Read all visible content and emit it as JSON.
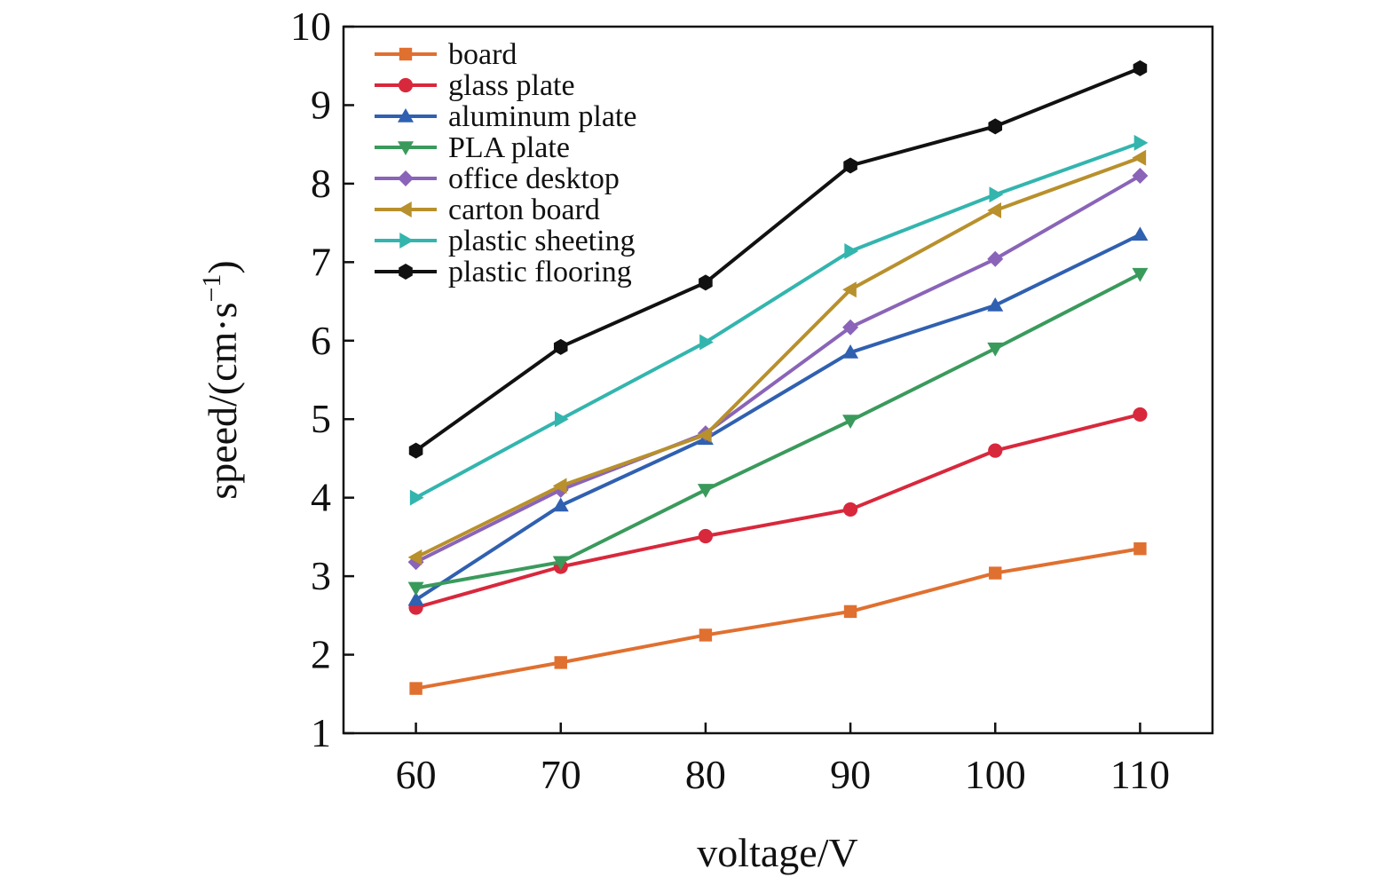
{
  "chart_data": {
    "type": "line",
    "title": "",
    "xlabel": "voltage/V",
    "ylabel": "speed/(cm·s",
    "ylabel_sup": "−1",
    "ylabel_end": ")",
    "x": [
      60,
      70,
      80,
      90,
      100,
      110
    ],
    "x_tick_labels": [
      "60",
      "70",
      "80",
      "90",
      "100",
      "110"
    ],
    "xlim": [
      55,
      115
    ],
    "ylim": [
      1,
      10
    ],
    "y_ticks": [
      1,
      2,
      3,
      4,
      5,
      6,
      7,
      8,
      9,
      10
    ],
    "y_tick_labels": [
      "1",
      "2",
      "3",
      "4",
      "5",
      "6",
      "7",
      "8",
      "9",
      "10"
    ],
    "grid": false,
    "legend_position": "top-left",
    "series": [
      {
        "name": "board",
        "color": "#E07030",
        "marker": "square",
        "values": [
          1.57,
          1.9,
          2.25,
          2.55,
          3.04,
          3.35
        ]
      },
      {
        "name": "glass plate",
        "color": "#D8283C",
        "marker": "circle",
        "values": [
          2.6,
          3.12,
          3.51,
          3.85,
          4.6,
          5.06
        ]
      },
      {
        "name": "aluminum plate",
        "color": "#3060B0",
        "marker": "triangle-up",
        "values": [
          2.7,
          3.9,
          4.75,
          5.85,
          6.45,
          7.35
        ]
      },
      {
        "name": "PLA plate",
        "color": "#3A9A5C",
        "marker": "triangle-down",
        "values": [
          2.85,
          3.18,
          4.1,
          4.98,
          5.9,
          6.85
        ]
      },
      {
        "name": "office desktop",
        "color": "#8A64B8",
        "marker": "diamond",
        "values": [
          3.18,
          4.1,
          4.82,
          6.17,
          7.04,
          8.1
        ]
      },
      {
        "name": "carton board",
        "color": "#B8902C",
        "marker": "triangle-left",
        "values": [
          3.24,
          4.15,
          4.8,
          6.65,
          7.66,
          8.33
        ]
      },
      {
        "name": "plastic sheeting",
        "color": "#33B5AE",
        "marker": "triangle-right",
        "values": [
          4.0,
          5.0,
          5.98,
          7.14,
          7.86,
          8.52
        ]
      },
      {
        "name": "plastic flooring",
        "color": "#111111",
        "marker": "hexagon",
        "values": [
          4.6,
          5.92,
          6.74,
          8.23,
          8.73,
          9.47
        ]
      }
    ]
  }
}
